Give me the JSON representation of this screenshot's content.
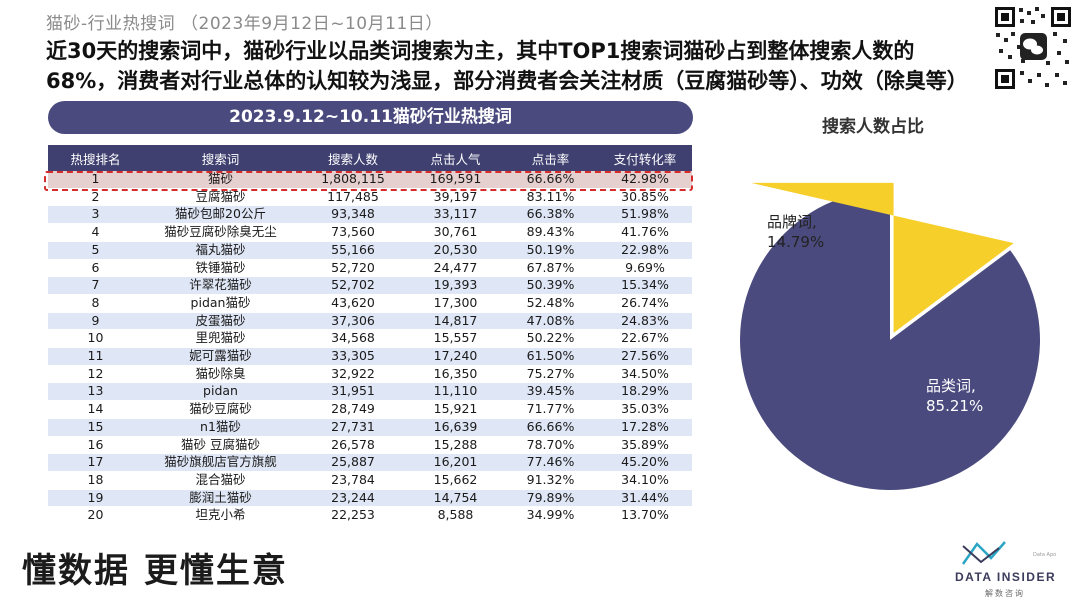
{
  "header": {
    "subtitle": "猫砂-行业热搜词 （2023年9月12日~10月11日）",
    "headline_line1": "近30天的搜索词中，猫砂行业以品类词搜索为主，其中TOP1搜索词猫砂占到整体搜索人数的",
    "headline_line2": "68%，消费者对行业总体的认知较为浅显，部分消费者会关注材质（豆腐猫砂等）、功效（除臭等）"
  },
  "table": {
    "banner": "2023.9.12~10.11猫砂行业热搜词",
    "columns": [
      "热搜排名",
      "搜索词",
      "搜索人数",
      "点击人气",
      "点击率",
      "支付转化率"
    ],
    "rows": [
      [
        "1",
        "猫砂",
        "1,808,115",
        "169,591",
        "66.66%",
        "42.98%"
      ],
      [
        "2",
        "豆腐猫砂",
        "117,485",
        "39,197",
        "83.11%",
        "30.85%"
      ],
      [
        "3",
        "猫砂包邮20公斤",
        "93,348",
        "33,117",
        "66.38%",
        "51.98%"
      ],
      [
        "4",
        "猫砂豆腐砂除臭无尘",
        "73,560",
        "30,761",
        "89.43%",
        "41.76%"
      ],
      [
        "5",
        "福丸猫砂",
        "55,166",
        "20,530",
        "50.19%",
        "22.98%"
      ],
      [
        "6",
        "铁锤猫砂",
        "52,720",
        "24,477",
        "67.87%",
        "9.69%"
      ],
      [
        "7",
        "许翠花猫砂",
        "52,702",
        "19,393",
        "50.39%",
        "15.34%"
      ],
      [
        "8",
        "pidan猫砂",
        "43,620",
        "17,300",
        "52.48%",
        "26.74%"
      ],
      [
        "9",
        "皮蛋猫砂",
        "37,306",
        "14,817",
        "47.08%",
        "24.83%"
      ],
      [
        "10",
        "里兜猫砂",
        "34,568",
        "15,557",
        "50.22%",
        "22.67%"
      ],
      [
        "11",
        "妮可露猫砂",
        "33,305",
        "17,240",
        "61.50%",
        "27.56%"
      ],
      [
        "12",
        "猫砂除臭",
        "32,922",
        "16,350",
        "75.27%",
        "34.50%"
      ],
      [
        "13",
        "pidan",
        "31,951",
        "11,110",
        "39.45%",
        "18.29%"
      ],
      [
        "14",
        "猫砂豆腐砂",
        "28,749",
        "15,921",
        "71.77%",
        "35.03%"
      ],
      [
        "15",
        "n1猫砂",
        "27,731",
        "16,639",
        "66.66%",
        "17.28%"
      ],
      [
        "16",
        "猫砂 豆腐猫砂",
        "26,578",
        "15,288",
        "78.70%",
        "35.89%"
      ],
      [
        "17",
        "猫砂旗舰店官方旗舰",
        "25,887",
        "16,201",
        "77.46%",
        "45.20%"
      ],
      [
        "18",
        "混合猫砂",
        "23,784",
        "15,662",
        "91.32%",
        "34.10%"
      ],
      [
        "19",
        "膨润土猫砂",
        "23,244",
        "14,754",
        "79.89%",
        "31.44%"
      ],
      [
        "20",
        "坦克小希",
        "22,253",
        "8,588",
        "34.99%",
        "13.70%"
      ]
    ]
  },
  "chart_data": {
    "type": "pie",
    "title": "搜索人数占比",
    "slices": [
      {
        "label": "品类词,",
        "value": 85.21,
        "value_label": "85.21%",
        "color": "#4a4a7e"
      },
      {
        "label": "品牌词,",
        "value": 14.79,
        "value_label": "14.79%",
        "color": "#f7cf2a"
      }
    ]
  },
  "footer": {
    "slogan": "懂数据 更懂生意",
    "logo_name": "DATA INSIDER",
    "logo_cn": "解数咨询",
    "logo_tiny": "Data Apo"
  }
}
